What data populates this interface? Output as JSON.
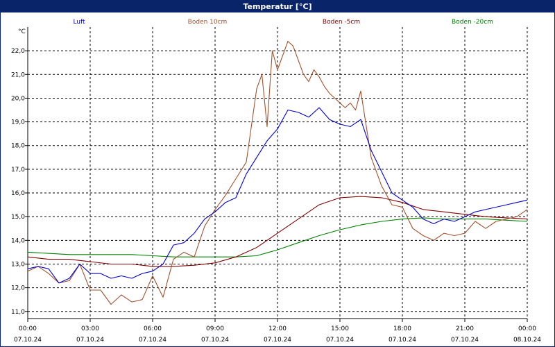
{
  "window_title": "Temperatur [°C]",
  "chart_data": {
    "type": "line",
    "title": "Temperatur [°C]",
    "ylabel": "°C",
    "xlabel": "",
    "ylim": [
      10.7,
      23.0
    ],
    "xlim": [
      0,
      24
    ],
    "grid": true,
    "legend_position": "top",
    "y_ticks": [
      "11,0",
      "12,0",
      "13,0",
      "14,0",
      "15,0",
      "16,0",
      "17,0",
      "18,0",
      "19,0",
      "20,0",
      "21,0",
      "22,0"
    ],
    "y_tick_values": [
      11,
      12,
      13,
      14,
      15,
      16,
      17,
      18,
      19,
      20,
      21,
      22
    ],
    "x_tick_values": [
      0,
      3,
      6,
      9,
      12,
      15,
      18,
      21,
      24
    ],
    "x_ticks_time": [
      "00:00",
      "03:00",
      "06:00",
      "09:00",
      "12:00",
      "15:00",
      "18:00",
      "21:00",
      "00:00"
    ],
    "x_ticks_date": [
      "07.10.24",
      "07.10.24",
      "07.10.24",
      "07.10.24",
      "07.10.24",
      "07.10.24",
      "07.10.24",
      "07.10.24",
      "08.10.24"
    ],
    "series": [
      {
        "name": "Luft",
        "color": "#0000cc",
        "x": [
          0,
          0.5,
          1,
          1.5,
          2,
          2.5,
          3,
          3.5,
          4,
          4.5,
          5,
          5.5,
          6,
          6.5,
          7,
          7.5,
          8,
          8.5,
          9,
          9.5,
          10,
          10.5,
          11,
          11.5,
          12,
          12.5,
          13,
          13.5,
          14,
          14.5,
          15,
          15.5,
          16,
          16.5,
          17,
          17.5,
          18,
          18.5,
          19,
          19.5,
          20,
          20.5,
          21,
          21.5,
          22,
          22.5,
          23,
          23.5,
          24
        ],
        "values": [
          12.8,
          12.9,
          12.8,
          12.2,
          12.4,
          13.0,
          12.6,
          12.6,
          12.4,
          12.5,
          12.4,
          12.6,
          12.7,
          13.0,
          13.8,
          13.9,
          14.3,
          14.9,
          15.2,
          15.6,
          15.8,
          16.8,
          17.5,
          18.2,
          18.7,
          19.5,
          19.4,
          19.2,
          19.6,
          19.1,
          18.9,
          18.8,
          19.1,
          17.8,
          16.9,
          16.0,
          15.7,
          15.4,
          14.9,
          14.7,
          14.9,
          14.8,
          15.0,
          15.2,
          15.3,
          15.4,
          15.5,
          15.6,
          15.7
        ]
      },
      {
        "name": "Boden 10cm",
        "color": "#a0522d",
        "x": [
          0,
          0.5,
          1,
          1.5,
          2,
          2.5,
          3,
          3.5,
          4,
          4.5,
          5,
          5.5,
          6,
          6.5,
          7,
          7.5,
          8,
          8.5,
          9,
          9.5,
          10,
          10.5,
          11,
          11.25,
          11.5,
          11.75,
          12,
          12.25,
          12.5,
          12.75,
          13,
          13.25,
          13.5,
          13.75,
          14,
          14.25,
          14.5,
          14.75,
          15,
          15.25,
          15.5,
          15.75,
          16,
          16.5,
          17,
          17.5,
          18,
          18.5,
          19,
          19.5,
          20,
          20.5,
          21,
          21.5,
          22,
          22.5,
          23,
          23.5,
          24
        ],
        "values": [
          12.7,
          12.9,
          12.6,
          12.2,
          12.3,
          13.0,
          11.9,
          11.9,
          11.3,
          11.7,
          11.4,
          11.5,
          12.5,
          11.6,
          13.2,
          13.5,
          13.3,
          14.6,
          15.3,
          15.9,
          16.6,
          17.3,
          20.4,
          21.0,
          18.8,
          22.0,
          21.2,
          21.8,
          22.4,
          22.2,
          21.6,
          21.0,
          20.7,
          21.2,
          20.9,
          20.5,
          20.2,
          20.0,
          19.8,
          19.6,
          19.8,
          19.5,
          20.3,
          17.5,
          16.3,
          15.5,
          15.4,
          14.5,
          14.2,
          14.0,
          14.3,
          14.2,
          14.3,
          14.8,
          14.5,
          14.8,
          14.9,
          15.0,
          15.3
        ]
      },
      {
        "name": "Boden -5cm",
        "color": "#800000",
        "x": [
          0,
          1,
          2,
          3,
          4,
          5,
          6,
          7,
          8,
          9,
          10,
          11,
          12,
          13,
          14,
          15,
          16,
          17,
          18,
          19,
          20,
          21,
          22,
          23,
          24
        ],
        "values": [
          13.3,
          13.2,
          13.2,
          13.1,
          13.0,
          13.0,
          12.9,
          12.9,
          12.95,
          13.05,
          13.3,
          13.7,
          14.3,
          14.9,
          15.5,
          15.8,
          15.85,
          15.8,
          15.6,
          15.3,
          15.2,
          15.1,
          15.0,
          14.95,
          14.9
        ]
      },
      {
        "name": "Boden -20cm",
        "color": "#008000",
        "x": [
          0,
          1,
          2,
          3,
          4,
          5,
          6,
          7,
          8,
          9,
          10,
          11,
          12,
          13,
          14,
          15,
          16,
          17,
          18,
          19,
          20,
          21,
          22,
          23,
          24
        ],
        "values": [
          13.5,
          13.45,
          13.4,
          13.4,
          13.4,
          13.4,
          13.35,
          13.3,
          13.3,
          13.3,
          13.3,
          13.35,
          13.6,
          13.9,
          14.2,
          14.45,
          14.65,
          14.8,
          14.9,
          14.95,
          14.9,
          14.9,
          14.9,
          14.85,
          14.8
        ]
      }
    ]
  }
}
